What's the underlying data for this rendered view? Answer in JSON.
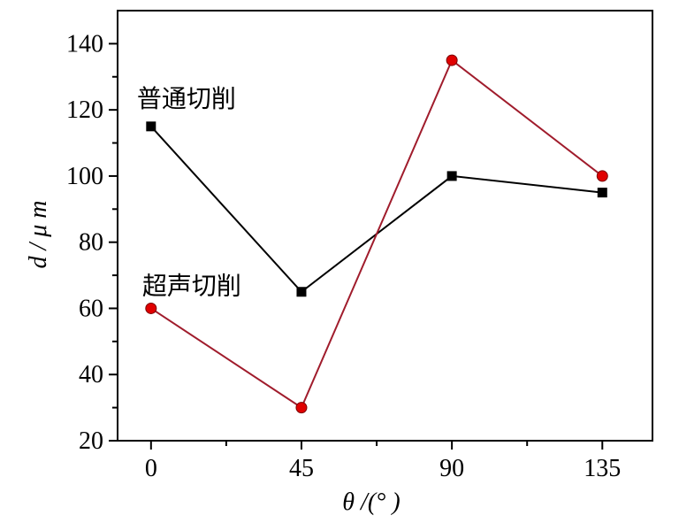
{
  "chart_data": {
    "type": "line",
    "x": [
      0,
      45,
      90,
      135
    ],
    "x_tick_labels": [
      "0",
      "45",
      "90",
      "135"
    ],
    "xlabel": "θ /(°  )",
    "ylabel": "d / μ m",
    "y_ticks": [
      20,
      40,
      60,
      80,
      100,
      120,
      140
    ],
    "y_tick_labels": [
      "20",
      "40",
      "60",
      "80",
      "100",
      "120",
      "140"
    ],
    "xlim": [
      -10,
      150
    ],
    "ylim": [
      20,
      150
    ],
    "grid": false,
    "legend": "none",
    "series": [
      {
        "name": "普通切削",
        "values": [
          115,
          65,
          100,
          95
        ],
        "color": "#000000",
        "marker": "square",
        "marker_color": "#000000"
      },
      {
        "name": "超声切削",
        "values": [
          60,
          30,
          135,
          100
        ],
        "color": "#a01c2c",
        "marker": "circle",
        "marker_color": "#e00000"
      }
    ]
  }
}
